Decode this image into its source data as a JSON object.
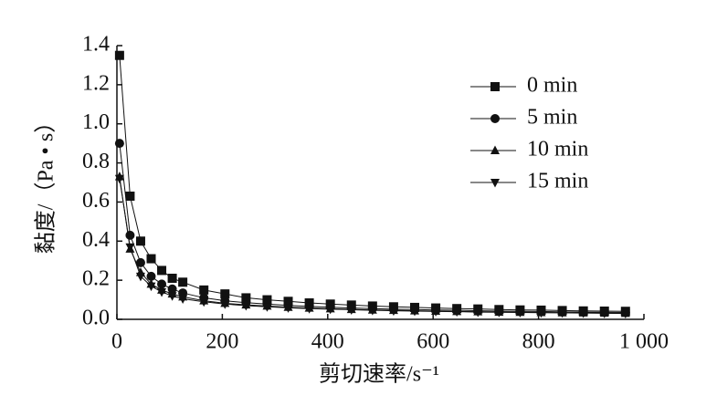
{
  "chart_data": {
    "type": "line",
    "xlabel": "剪切速率/s⁻¹",
    "ylabel": "黏度/（Pa • s）",
    "x": [
      5,
      25,
      45,
      65,
      85,
      105,
      125,
      165,
      205,
      245,
      285,
      325,
      365,
      405,
      445,
      485,
      525,
      565,
      605,
      645,
      685,
      725,
      765,
      805,
      845,
      885,
      925,
      965
    ],
    "series": [
      {
        "name": "0 min",
        "color": "#111111",
        "marker": "square",
        "values": [
          1.35,
          0.63,
          0.4,
          0.31,
          0.25,
          0.21,
          0.19,
          0.15,
          0.13,
          0.11,
          0.1,
          0.092,
          0.084,
          0.078,
          0.073,
          0.068,
          0.064,
          0.061,
          0.058,
          0.055,
          0.053,
          0.05,
          0.048,
          0.047,
          0.045,
          0.043,
          0.042,
          0.041
        ]
      },
      {
        "name": "5 min",
        "color": "#111111",
        "marker": "circle",
        "values": [
          0.9,
          0.43,
          0.29,
          0.22,
          0.18,
          0.155,
          0.135,
          0.11,
          0.095,
          0.085,
          0.078,
          0.071,
          0.066,
          0.062,
          0.058,
          0.055,
          0.052,
          0.05,
          0.048,
          0.046,
          0.044,
          0.042,
          0.041,
          0.04,
          0.038,
          0.037,
          0.036,
          0.035
        ]
      },
      {
        "name": "10 min",
        "color": "#111111",
        "marker": "triangle-up",
        "values": [
          0.73,
          0.36,
          0.24,
          0.18,
          0.15,
          0.13,
          0.115,
          0.095,
          0.082,
          0.074,
          0.068,
          0.062,
          0.058,
          0.054,
          0.051,
          0.048,
          0.046,
          0.044,
          0.042,
          0.04,
          0.039,
          0.037,
          0.036,
          0.035,
          0.034,
          0.033,
          0.032,
          0.031
        ]
      },
      {
        "name": "15 min",
        "color": "#111111",
        "marker": "triangle-down",
        "values": [
          0.72,
          0.37,
          0.22,
          0.17,
          0.14,
          0.12,
          0.105,
          0.09,
          0.078,
          0.07,
          0.064,
          0.059,
          0.055,
          0.052,
          0.049,
          0.046,
          0.044,
          0.042,
          0.04,
          0.039,
          0.037,
          0.036,
          0.035,
          0.034,
          0.033,
          0.032,
          0.031,
          0.03
        ]
      }
    ],
    "xlim": [
      0,
      1000
    ],
    "xticks": [
      0,
      200,
      400,
      600,
      800,
      {
        "value": 1000,
        "label": "1 000"
      }
    ],
    "ylim": [
      0,
      1.4
    ],
    "yticks": [
      {
        "value": 0,
        "label": "0.0"
      },
      0.2,
      0.4,
      0.6,
      0.8,
      {
        "value": 1,
        "label": "1.0"
      },
      1.2,
      1.4
    ],
    "grid": false,
    "legend": "upper right"
  }
}
